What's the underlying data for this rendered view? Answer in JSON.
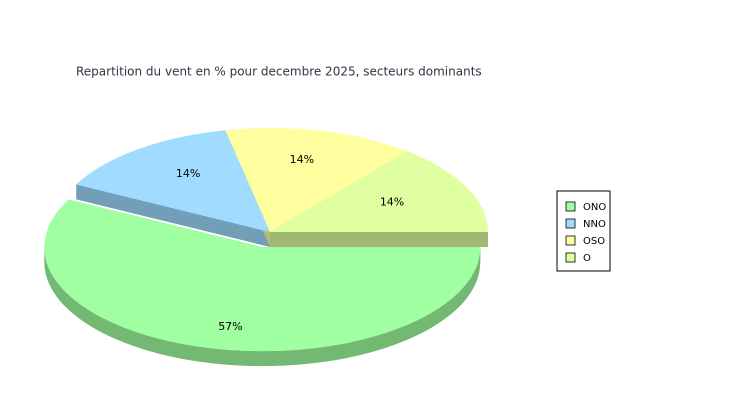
{
  "chart_data": {
    "type": "pie",
    "title": "Repartition du vent en % pour decembre 2025, secteurs dominants",
    "categories": [
      "ONO",
      "NNO",
      "OSO",
      "O"
    ],
    "values": [
      57,
      14,
      14,
      14
    ],
    "value_labels": [
      "57%",
      "14%",
      "14%",
      "14%"
    ],
    "colors": [
      "#a0ffa0",
      "#a0dcff",
      "#ffffa0",
      "#e0ffa0"
    ],
    "exploded": "ONO",
    "legend": "right"
  }
}
